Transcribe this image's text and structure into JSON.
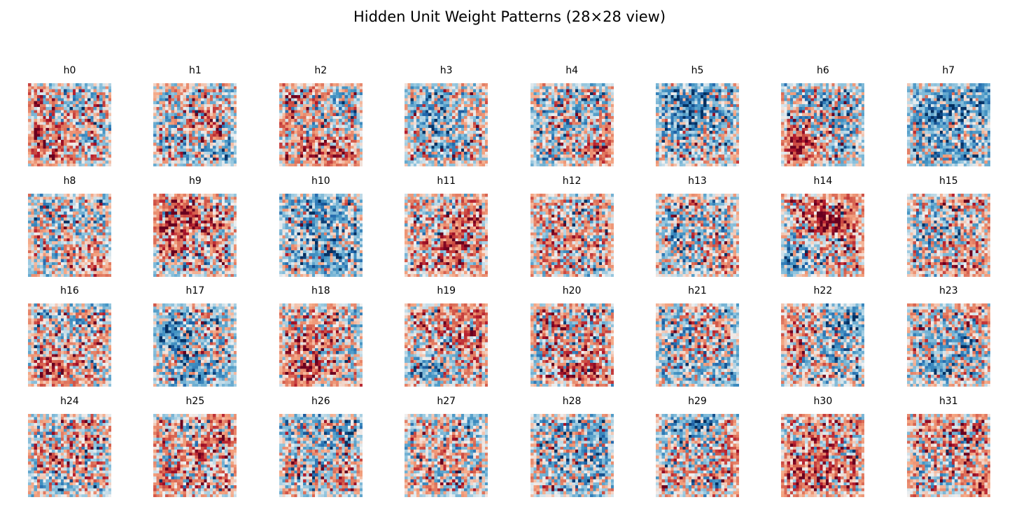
{
  "chart_data": {
    "type": "heatmap",
    "title": "Hidden Unit Weight Patterns (28×28 view)",
    "grid": {
      "rows": 4,
      "cols": 8
    },
    "image_size": [
      28,
      28
    ],
    "colormap": "diverging red-white-blue",
    "colors": {
      "negative": "#053061",
      "neutral": "#f7f7f7",
      "positive": "#67001f"
    },
    "axes_visible": false,
    "panels": [
      {
        "title": "h0"
      },
      {
        "title": "h1"
      },
      {
        "title": "h2"
      },
      {
        "title": "h3"
      },
      {
        "title": "h4"
      },
      {
        "title": "h5"
      },
      {
        "title": "h6"
      },
      {
        "title": "h7"
      },
      {
        "title": "h8"
      },
      {
        "title": "h9"
      },
      {
        "title": "h10"
      },
      {
        "title": "h11"
      },
      {
        "title": "h12"
      },
      {
        "title": "h13"
      },
      {
        "title": "h14"
      },
      {
        "title": "h15"
      },
      {
        "title": "h16"
      },
      {
        "title": "h17"
      },
      {
        "title": "h18"
      },
      {
        "title": "h19"
      },
      {
        "title": "h20"
      },
      {
        "title": "h21"
      },
      {
        "title": "h22"
      },
      {
        "title": "h23"
      },
      {
        "title": "h24"
      },
      {
        "title": "h25"
      },
      {
        "title": "h26"
      },
      {
        "title": "h27"
      },
      {
        "title": "h28"
      },
      {
        "title": "h29"
      },
      {
        "title": "h30"
      },
      {
        "title": "h31"
      }
    ]
  }
}
